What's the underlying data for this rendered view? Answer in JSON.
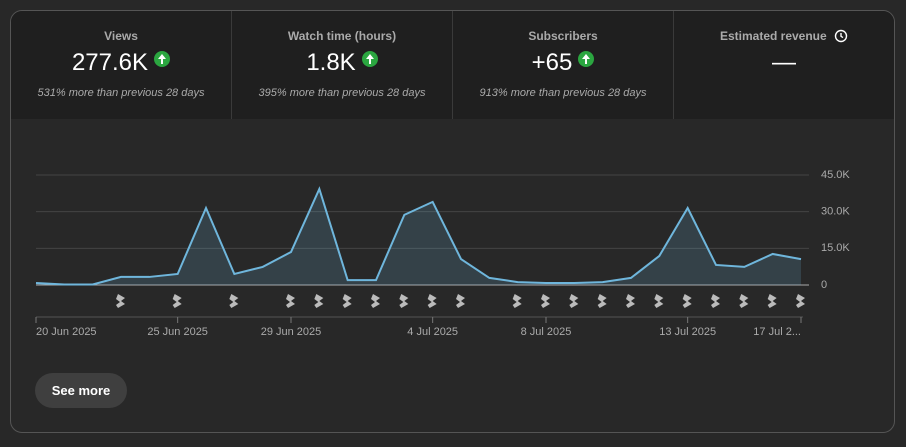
{
  "tabs": [
    {
      "label": "Views",
      "value": "277.6K",
      "note": "531% more than previous 28 days"
    },
    {
      "label": "Watch time (hours)",
      "value": "1.8K",
      "note": "395% more than previous 28 days"
    },
    {
      "label": "Subscribers",
      "value": "+65",
      "note": "913% more than previous 28 days"
    },
    {
      "label": "Estimated revenue",
      "value": "—"
    }
  ],
  "chart_data": {
    "type": "area",
    "categories": [
      "20 Jun 2025",
      null,
      null,
      null,
      null,
      "25 Jun 2025",
      null,
      null,
      null,
      "29 Jun 2025",
      null,
      null,
      null,
      null,
      "4 Jul 2025",
      null,
      null,
      null,
      "8 Jul 2025",
      null,
      null,
      null,
      null,
      "13 Jul 2025",
      null,
      null,
      null,
      "17 Jul 2..."
    ],
    "values": [
      800,
      200,
      200,
      3300,
      3300,
      4500,
      31500,
      4500,
      7400,
      13500,
      39300,
      2000,
      2000,
      28700,
      34000,
      10600,
      2900,
      1200,
      800,
      800,
      1200,
      2900,
      11900,
      31500,
      8200,
      7400,
      12700,
      10600
    ],
    "color": "#6fb6dc",
    "ylim": [
      0,
      45000
    ],
    "yticks": [
      0,
      {
        "value": 15000,
        "label": "15.0K"
      },
      {
        "value": 30000,
        "label": "30.0K"
      },
      {
        "value": 45000,
        "label": "45.0K"
      }
    ],
    "grid": true
  },
  "button": "See more"
}
